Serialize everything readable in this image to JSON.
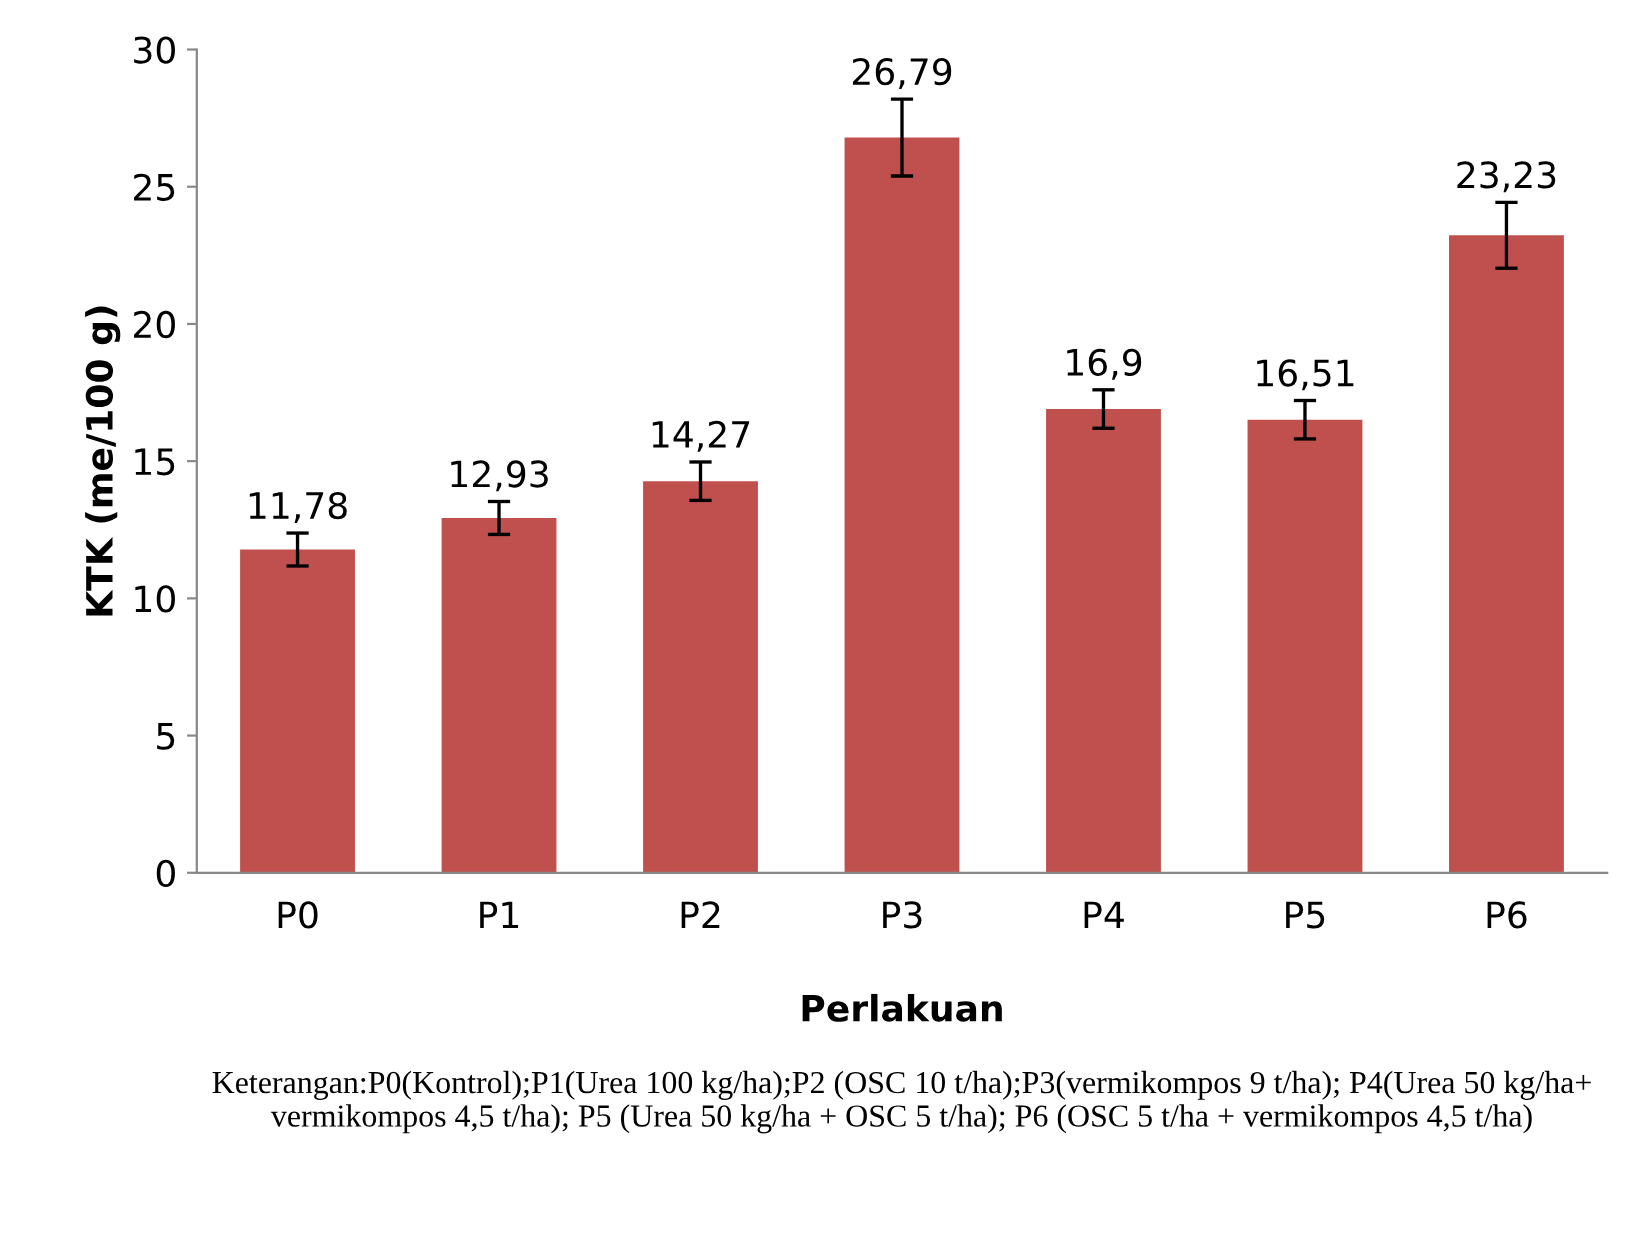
{
  "chart_data": {
    "type": "bar",
    "xlabel": "Perlakuan",
    "ylabel": "KTK (me/100 g)",
    "categories": [
      "P0",
      "P1",
      "P2",
      "P3",
      "P4",
      "P5",
      "P6"
    ],
    "values": [
      11.78,
      12.93,
      14.27,
      26.79,
      16.9,
      16.51,
      23.23
    ],
    "value_labels": [
      "11,78",
      "12,93",
      "14,27",
      "26,79",
      "16,9",
      "16,51",
      "23,23"
    ],
    "errors": [
      0.6,
      0.6,
      0.7,
      1.4,
      0.7,
      0.7,
      1.2
    ],
    "color": "#c0504d",
    "ylim": [
      0,
      30
    ],
    "yticks": [
      0,
      5,
      10,
      15,
      20,
      25,
      30
    ],
    "grid": false,
    "legend": false,
    "annotations": [
      "Keterangan:P0(Kontrol);P1(Urea 100 kg/ha);P2 (OSC 10 t/ha);P3(vermikompos 9 t/ha); P4(Urea 50 kg/ha+ vermikompos 4,5 t/ha); P5 (Urea 50 kg/ha + OSC 5 t/ha); P6 (OSC 5 t/ha + vermikompos 4,5 t/ha)"
    ]
  }
}
